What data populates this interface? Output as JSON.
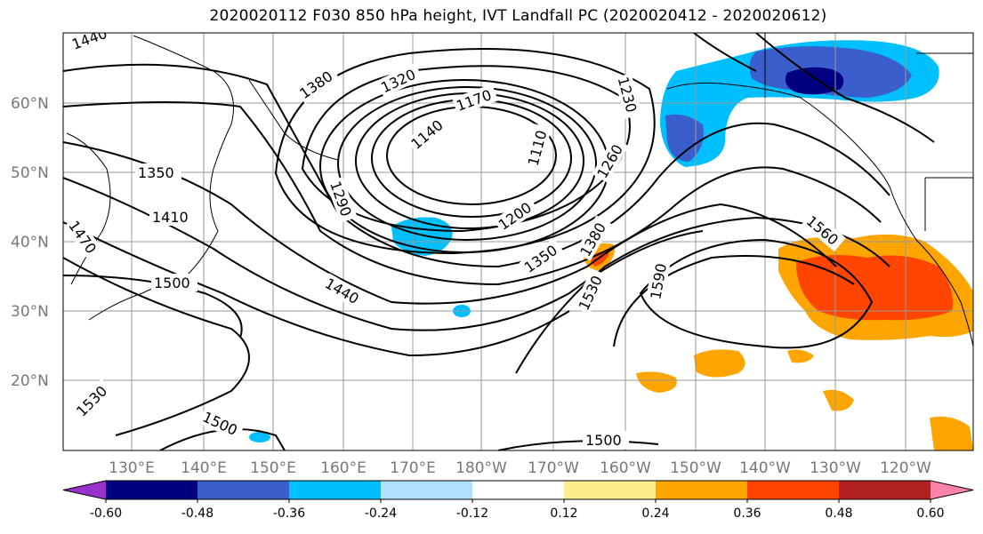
{
  "title": "2020020112 F030 850 hPa height, IVT Landfall PC (2020020412 - 2020020612)",
  "latitude_labels": [
    "60°N",
    "50°N",
    "40°N",
    "30°N",
    "20°N"
  ],
  "longitude_labels": [
    "130°E",
    "140°E",
    "150°E",
    "160°E",
    "170°E",
    "180°W",
    "170°W",
    "160°W",
    "150°W",
    "140°W",
    "130°W",
    "120°W"
  ],
  "contour_labels": [
    "1440",
    "1380",
    "1320",
    "1230",
    "1170",
    "1140",
    "1110",
    "1350",
    "1410",
    "1470",
    "1500",
    "1290",
    "1200",
    "1260",
    "1350",
    "1380",
    "1440",
    "1530",
    "1590",
    "1560",
    "1530",
    "1500",
    "1500"
  ],
  "colorbar": {
    "colors": [
      "#9932CC",
      "#000080",
      "#3A5FCD",
      "#00BFFF",
      "#B0E2FF",
      "#FFFFFF",
      "#FFEC8B",
      "#FFA500",
      "#FF4500",
      "#B22222",
      "#FF82AB"
    ],
    "tick_labels": [
      "-0.60",
      "-0.48",
      "-0.36",
      "-0.24",
      "-0.12",
      "0.12",
      "0.24",
      "0.36",
      "0.48",
      "0.60"
    ]
  }
}
